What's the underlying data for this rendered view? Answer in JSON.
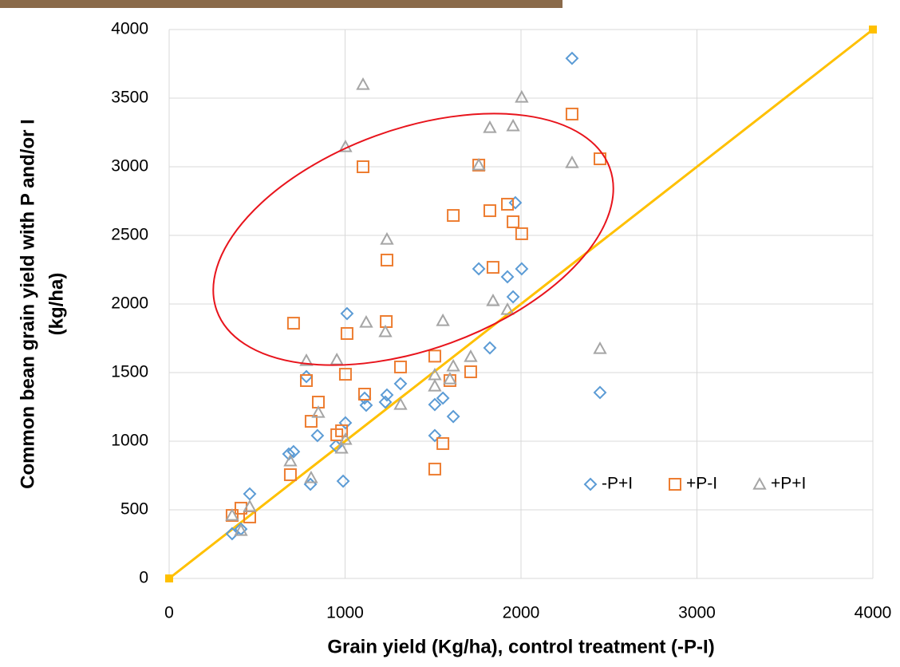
{
  "chart_data": {
    "type": "scatter",
    "xlabel": "Grain yield (Kg/ha), control treatment (-P-I)",
    "ylabel": [
      "Common bean grain yield with P and/or I",
      "(kg/ha)"
    ],
    "xlim": [
      0,
      4000
    ],
    "xticks": [
      0,
      1000,
      2000,
      3000,
      4000
    ],
    "ylim": [
      0,
      4000
    ],
    "yticks": [
      0,
      500,
      1000,
      1500,
      2000,
      2500,
      3000,
      3500,
      4000
    ],
    "grid": true,
    "legend": "lower right",
    "reference_line": {
      "x": [
        0,
        4000
      ],
      "y": [
        0,
        4000
      ],
      "color": "#FFC000"
    },
    "series": [
      {
        "name": "-P+I",
        "color": "#5B9BD5",
        "marker": "diamond",
        "x": [
          2290,
          1968,
          1760,
          1923,
          2004,
          1955,
          1823,
          1011,
          1002,
          1120,
          1111,
          1238,
          1229,
          1315,
          1510,
          1556,
          1615,
          1510,
          843,
          780,
          707,
          680,
          948,
          989,
          803,
          458,
          358,
          408,
          2449
        ],
        "values": [
          3790,
          2738,
          2256,
          2198,
          2256,
          2052,
          1680,
          1930,
          1134,
          1262,
          1314,
          1337,
          1285,
          1419,
          1267,
          1314,
          1180,
          1041,
          1041,
          1471,
          924,
          907,
          965,
          709,
          686,
          616,
          326,
          360,
          1355
        ]
      },
      {
        "name": "+P-I",
        "color": "#ED7D31",
        "marker": "square",
        "x": [
          2290,
          2449,
          1102,
          1760,
          1615,
          1823,
          1923,
          1955,
          2004,
          1841,
          1238,
          1234,
          1011,
          707,
          1510,
          1315,
          1714,
          1596,
          1002,
          780,
          848,
          1111,
          807,
          953,
          980,
          1556,
          1510,
          689,
          358,
          408,
          458
        ],
        "values": [
          3384,
          3058,
          3000,
          3012,
          2645,
          2680,
          2727,
          2599,
          2512,
          2267,
          2320,
          1872,
          1785,
          1860,
          1620,
          1541,
          1506,
          1442,
          1488,
          1442,
          1285,
          1343,
          1145,
          1047,
          1076,
          983,
          797,
          756,
          459,
          512,
          448
        ]
      },
      {
        "name": "+P+I",
        "color": "#A5A5A5",
        "marker": "triangle",
        "x": [
          1102,
          2004,
          1955,
          1823,
          1002,
          1760,
          2290,
          1238,
          1229,
          1120,
          1556,
          1841,
          1923,
          780,
          953,
          1714,
          2449,
          1615,
          1510,
          1510,
          1596,
          1315,
          848,
          1002,
          980,
          689,
          807,
          458,
          358,
          408
        ],
        "values": [
          3599,
          3506,
          3297,
          3285,
          3145,
          3012,
          3029,
          2471,
          1797,
          1866,
          1878,
          2023,
          1959,
          1587,
          1593,
          1616,
          1674,
          1547,
          1483,
          1401,
          1453,
          1267,
          1209,
          1012,
          948,
          855,
          733,
          523,
          459,
          349
        ]
      }
    ]
  }
}
